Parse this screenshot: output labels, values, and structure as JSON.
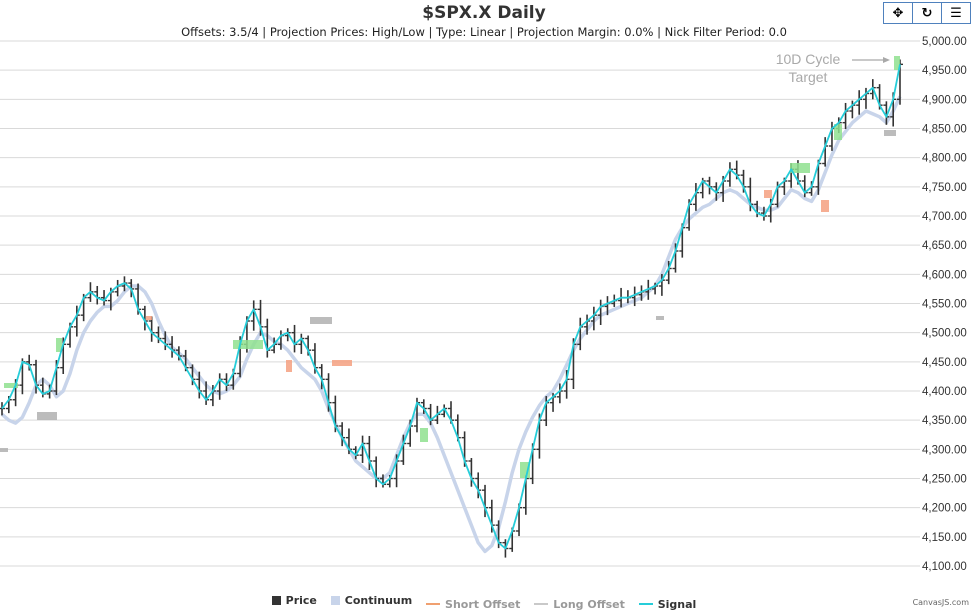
{
  "header": {
    "title": "$SPX.X Daily",
    "subtitle": "Offsets: 3.5/4 | Projection Prices: High/Low | Type: Linear | Projection Margin: 0.0% | Nick Filter Period: 0.0"
  },
  "toolbar": [
    {
      "name": "pan-button",
      "icon": "pan-icon",
      "glyph": "✥"
    },
    {
      "name": "reset-button",
      "icon": "reset-icon",
      "glyph": "↻"
    },
    {
      "name": "menu-button",
      "icon": "menu-icon",
      "glyph": "☰"
    }
  ],
  "credit": "CanvasJS.com",
  "colors": {
    "price": "#333333",
    "continuum": "#c8d4ea",
    "short_offset": "#f0a070",
    "long_offset": "#c9c9c9",
    "signal": "#26cdd9",
    "grid": "#d9d9d9",
    "green_box": "#8fe08f",
    "red_box": "#f4a080",
    "grey_box": "#b0b0b0"
  },
  "chart_data": {
    "type": "line",
    "title": "$SPX.X Daily",
    "ylim": [
      4100,
      5000
    ],
    "yticks": [
      "4,100.00",
      "4,150.00",
      "4,200.00",
      "4,250.00",
      "4,300.00",
      "4,350.00",
      "4,400.00",
      "4,450.00",
      "4,500.00",
      "4,550.00",
      "4,600.00",
      "4,650.00",
      "4,700.00",
      "4,750.00",
      "4,800.00",
      "4,850.00",
      "4,900.00",
      "4,950.00",
      "5,000.00"
    ],
    "grid": true,
    "legend_position": "bottom",
    "legend": [
      {
        "label": "Price",
        "kind": "square",
        "color": "#333333"
      },
      {
        "label": "Continuum",
        "kind": "square",
        "color": "#c8d4ea"
      },
      {
        "label": "Short Offset",
        "kind": "line",
        "color": "#f0a070"
      },
      {
        "label": "Long Offset",
        "kind": "line",
        "color": "#c9c9c9"
      },
      {
        "label": "Signal",
        "kind": "line",
        "color": "#26cdd9"
      }
    ],
    "annotation": {
      "lines": [
        "10D Cycle",
        "Target"
      ]
    },
    "signal": [
      4370,
      4385,
      4410,
      4450,
      4445,
      4410,
      4395,
      4400,
      4440,
      4480,
      4510,
      4530,
      4560,
      4570,
      4560,
      4555,
      4570,
      4580,
      4585,
      4575,
      4540,
      4520,
      4500,
      4490,
      4480,
      4470,
      4460,
      4440,
      4420,
      4400,
      4385,
      4400,
      4420,
      4410,
      4430,
      4480,
      4520,
      4540,
      4510,
      4470,
      4480,
      4495,
      4500,
      4480,
      4490,
      4470,
      4440,
      4420,
      4380,
      4340,
      4320,
      4300,
      4290,
      4310,
      4280,
      4250,
      4240,
      4250,
      4280,
      4310,
      4340,
      4380,
      4370,
      4350,
      4360,
      4370,
      4350,
      4320,
      4280,
      4250,
      4230,
      4200,
      4170,
      4140,
      4130,
      4160,
      4200,
      4250,
      4300,
      4350,
      4380,
      4390,
      4400,
      4420,
      4480,
      4510,
      4520,
      4530,
      4545,
      4550,
      4555,
      4560,
      4560,
      4565,
      4570,
      4575,
      4580,
      4590,
      4610,
      4640,
      4680,
      4720,
      4740,
      4760,
      4750,
      4740,
      4760,
      4780,
      4770,
      4750,
      4720,
      4705,
      4700,
      4720,
      4750,
      4760,
      4780,
      4760,
      4740,
      4750,
      4790,
      4820,
      4850,
      4860,
      4880,
      4890,
      4900,
      4910,
      4920,
      4890,
      4870,
      4900,
      4960
    ],
    "continuum": [
      4360,
      4350,
      4345,
      4355,
      4380,
      4410,
      4420,
      4410,
      4390,
      4400,
      4430,
      4470,
      4500,
      4520,
      4535,
      4545,
      4545,
      4555,
      4570,
      4580,
      4580,
      4570,
      4550,
      4520,
      4495,
      4475,
      4465,
      4455,
      4440,
      4425,
      4410,
      4400,
      4395,
      4400,
      4410,
      4425,
      4455,
      4480,
      4500,
      4495,
      4485,
      4480,
      4470,
      4455,
      4440,
      4430,
      4420,
      4400,
      4370,
      4345,
      4320,
      4300,
      4280,
      4270,
      4260,
      4250,
      4250,
      4260,
      4290,
      4320,
      4345,
      4360,
      4360,
      4345,
      4320,
      4290,
      4260,
      4230,
      4200,
      4170,
      4140,
      4125,
      4135,
      4165,
      4210,
      4260,
      4300,
      4330,
      4355,
      4375,
      4390,
      4400,
      4420,
      4445,
      4470,
      4490,
      4505,
      4520,
      4530,
      4535,
      4540,
      4545,
      4550,
      4555,
      4560,
      4570,
      4580,
      4600,
      4630,
      4660,
      4680,
      4695,
      4705,
      4715,
      4720,
      4730,
      4740,
      4745,
      4740,
      4730,
      4720,
      4715,
      4710,
      4710,
      4715,
      4730,
      4745,
      4740,
      4730,
      4725,
      4745,
      4775,
      4805,
      4830,
      4845,
      4860,
      4870,
      4880,
      4875,
      4870,
      4860,
      4880,
      4905
    ]
  }
}
